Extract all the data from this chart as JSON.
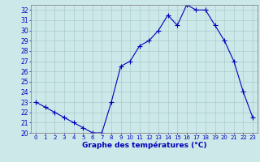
{
  "hours": [
    0,
    1,
    2,
    3,
    4,
    5,
    6,
    7,
    8,
    9,
    10,
    11,
    12,
    13,
    14,
    15,
    16,
    17,
    18,
    19,
    20,
    21,
    22,
    23
  ],
  "temps": [
    23.0,
    22.5,
    22.0,
    21.5,
    21.0,
    20.5,
    20.0,
    20.0,
    23.0,
    26.5,
    27.0,
    28.5,
    29.0,
    30.0,
    31.5,
    30.5,
    32.5,
    32.0,
    32.0,
    30.5,
    29.0,
    27.0,
    24.0,
    21.5
  ],
  "line_color": "#0000bb",
  "marker": "+",
  "markersize": 4,
  "bg_color": "#cce8e8",
  "grid_color": "#aacccc",
  "xlabel": "Graphe des températures (°C)",
  "xlabel_color": "#0000bb",
  "tick_color": "#0000bb",
  "axis_color": "#888888",
  "ylim": [
    20,
    32.5
  ],
  "xlim": [
    -0.5,
    23.5
  ],
  "yticks": [
    20,
    21,
    22,
    23,
    24,
    25,
    26,
    27,
    28,
    29,
    30,
    31,
    32
  ],
  "xticks": [
    0,
    1,
    2,
    3,
    4,
    5,
    6,
    7,
    8,
    9,
    10,
    11,
    12,
    13,
    14,
    15,
    16,
    17,
    18,
    19,
    20,
    21,
    22,
    23
  ]
}
